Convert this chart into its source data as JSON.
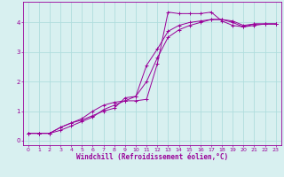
{
  "background_color": "#d8f0f0",
  "grid_color": "#b0dede",
  "line_color": "#990099",
  "marker": "+",
  "xlabel": "Windchill (Refroidissement éolien,°C)",
  "xlabel_fontsize": 5.5,
  "ylabel_ticks": [
    0,
    1,
    2,
    3,
    4
  ],
  "xlim": [
    -0.5,
    23.5
  ],
  "ylim": [
    -0.15,
    4.7
  ],
  "xticks": [
    0,
    1,
    2,
    3,
    4,
    5,
    6,
    7,
    8,
    9,
    10,
    11,
    12,
    13,
    14,
    15,
    16,
    17,
    18,
    19,
    20,
    21,
    22,
    23
  ],
  "series": [
    [
      0,
      0.25
    ],
    [
      1,
      0.25
    ],
    [
      2,
      0.25
    ],
    [
      3,
      0.45
    ],
    [
      4,
      0.6
    ],
    [
      5,
      0.75
    ],
    [
      6,
      1.0
    ],
    [
      7,
      1.2
    ],
    [
      8,
      1.3
    ],
    [
      9,
      1.35
    ],
    [
      10,
      1.35
    ],
    [
      11,
      1.4
    ],
    [
      12,
      2.6
    ],
    [
      13,
      4.35
    ],
    [
      14,
      4.3
    ],
    [
      15,
      4.3
    ],
    [
      16,
      4.3
    ],
    [
      17,
      4.35
    ],
    [
      18,
      4.05
    ],
    [
      19,
      3.9
    ],
    [
      20,
      3.85
    ],
    [
      21,
      3.95
    ],
    [
      22,
      3.95
    ],
    [
      23,
      3.95
    ]
  ],
  "series2": [
    [
      0,
      0.25
    ],
    [
      1,
      0.25
    ],
    [
      2,
      0.25
    ],
    [
      3,
      0.45
    ],
    [
      4,
      0.6
    ],
    [
      5,
      0.7
    ],
    [
      6,
      0.85
    ],
    [
      7,
      1.0
    ],
    [
      8,
      1.1
    ],
    [
      9,
      1.45
    ],
    [
      10,
      1.5
    ],
    [
      11,
      2.55
    ],
    [
      12,
      3.1
    ],
    [
      13,
      3.7
    ],
    [
      14,
      3.9
    ],
    [
      15,
      4.0
    ],
    [
      16,
      4.05
    ],
    [
      17,
      4.1
    ],
    [
      18,
      4.1
    ],
    [
      19,
      4.0
    ],
    [
      20,
      3.85
    ],
    [
      21,
      3.9
    ],
    [
      22,
      3.95
    ],
    [
      23,
      3.95
    ]
  ],
  "series3": [
    [
      0,
      0.25
    ],
    [
      1,
      0.25
    ],
    [
      2,
      0.25
    ],
    [
      3,
      0.35
    ],
    [
      4,
      0.5
    ],
    [
      5,
      0.65
    ],
    [
      6,
      0.8
    ],
    [
      7,
      1.05
    ],
    [
      8,
      1.2
    ],
    [
      9,
      1.35
    ],
    [
      10,
      1.5
    ],
    [
      11,
      2.0
    ],
    [
      12,
      2.8
    ],
    [
      13,
      3.5
    ],
    [
      14,
      3.75
    ],
    [
      15,
      3.9
    ],
    [
      16,
      4.0
    ],
    [
      17,
      4.1
    ],
    [
      18,
      4.1
    ],
    [
      19,
      4.05
    ],
    [
      20,
      3.9
    ],
    [
      21,
      3.95
    ],
    [
      22,
      3.95
    ],
    [
      23,
      3.95
    ]
  ]
}
